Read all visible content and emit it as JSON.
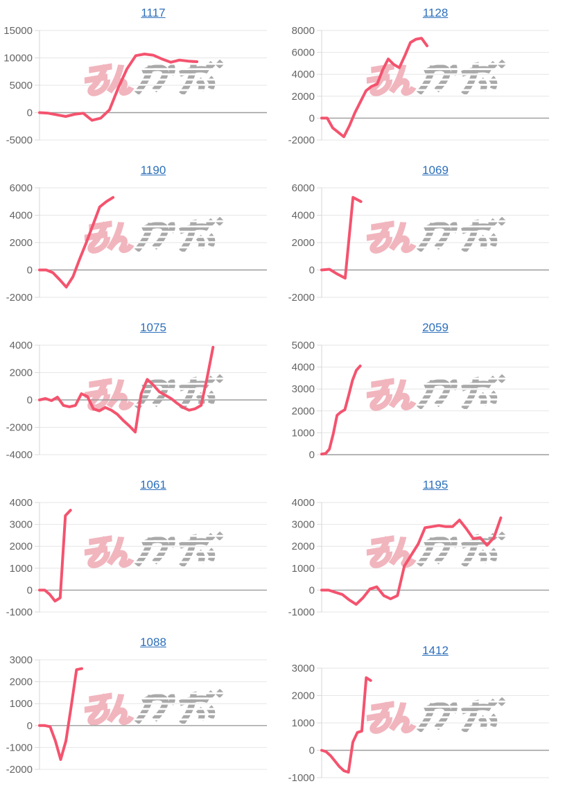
{
  "watermark": {
    "label": "みんかぶ",
    "pink_text": "みん",
    "gray_text": "かぶ"
  },
  "colors": {
    "line": "#f4536e",
    "title_link": "#2c6fbb",
    "axis_label": "#646464",
    "gridline": "#e6e6e6",
    "tick_stub": "#d9d9d9",
    "axis_line": "#d6d6d6",
    "zero_line": "#9b9b9b",
    "watermark_pink": "#f1b5be",
    "watermark_gray": "#a9a9a9",
    "background": "#ffffff"
  },
  "chart_data": [
    {
      "title": "1117",
      "type": "line",
      "legend": "none",
      "grid": true,
      "ylim": [
        -5000,
        15000
      ],
      "yticks": [
        15000,
        10000,
        5000,
        0,
        -5000
      ],
      "x_slots": 27,
      "values": [
        0,
        -100,
        -400,
        -700,
        -300,
        -100,
        -1400,
        -1000,
        500,
        4500,
        8000,
        10400,
        10700,
        10500,
        9800,
        9200,
        9600,
        9400,
        9300
      ]
    },
    {
      "title": "1128",
      "type": "line",
      "legend": "none",
      "grid": true,
      "ylim": [
        -2000,
        8000
      ],
      "yticks": [
        8000,
        6000,
        4000,
        2000,
        0,
        -2000
      ],
      "x_slots": 42,
      "values": [
        0,
        0,
        -900,
        -1300,
        -1700,
        -700,
        500,
        1500,
        2500,
        2900,
        3100,
        4400,
        5400,
        4900,
        4600,
        5700,
        6900,
        7200,
        7300,
        6600
      ]
    },
    {
      "title": "1190",
      "type": "line",
      "legend": "none",
      "grid": true,
      "ylim": [
        -2000,
        6000
      ],
      "yticks": [
        6000,
        4000,
        2000,
        0,
        -2000
      ],
      "x_slots": 35,
      "values": [
        0,
        0,
        -200,
        -700,
        -1250,
        -500,
        800,
        2000,
        3300,
        4600,
        5000,
        5300
      ]
    },
    {
      "title": "1069",
      "type": "line",
      "legend": "none",
      "grid": true,
      "ylim": [
        -2000,
        6000
      ],
      "yticks": [
        6000,
        4000,
        2000,
        0,
        -2000
      ],
      "x_slots": 30,
      "values": [
        0,
        50,
        -300,
        -600,
        5300,
        5000
      ]
    },
    {
      "title": "1075",
      "type": "line",
      "legend": "none",
      "grid": true,
      "ylim": [
        -4000,
        4000
      ],
      "yticks": [
        4000,
        2000,
        0,
        -2000,
        -4000
      ],
      "x_slots": 39,
      "values": [
        0,
        100,
        -50,
        200,
        -400,
        -500,
        -400,
        450,
        250,
        -650,
        -800,
        -550,
        -750,
        -1050,
        -1500,
        -1900,
        -2350,
        450,
        1500,
        1100,
        600,
        350,
        100,
        -250,
        -550,
        -750,
        -650,
        -400,
        1600,
        3850
      ]
    },
    {
      "title": "2059",
      "type": "line",
      "legend": "none",
      "grid": true,
      "ylim": [
        0,
        5000
      ],
      "yticks": [
        5000,
        4000,
        3000,
        2000,
        1000,
        0
      ],
      "x_slots": 60,
      "values": [
        30,
        50,
        250,
        950,
        1800,
        1950,
        2050,
        2700,
        3400,
        3850,
        4050
      ]
    },
    {
      "title": "1061",
      "type": "line",
      "legend": "none",
      "grid": true,
      "ylim": [
        -1000,
        4000
      ],
      "yticks": [
        4000,
        3000,
        2000,
        1000,
        0,
        -1000
      ],
      "x_slots": 45,
      "values": [
        0,
        0,
        -200,
        -500,
        -350,
        3400,
        3650
      ]
    },
    {
      "title": "1195",
      "type": "line",
      "legend": "none",
      "grid": true,
      "ylim": [
        -1000,
        4000
      ],
      "yticks": [
        4000,
        3000,
        2000,
        1000,
        0,
        -1000
      ],
      "x_slots": 34,
      "values": [
        0,
        0,
        -100,
        -200,
        -450,
        -650,
        -350,
        50,
        150,
        -250,
        -400,
        -250,
        1100,
        1600,
        2100,
        2850,
        2900,
        2950,
        2900,
        2900,
        3200,
        2800,
        2350,
        2400,
        2050,
        2400,
        3300
      ]
    },
    {
      "title": "1088",
      "type": "line",
      "legend": "none",
      "grid": true,
      "ylim": [
        -2000,
        3000
      ],
      "yticks": [
        3000,
        2000,
        1000,
        0,
        -1000,
        -2000
      ],
      "x_slots": 44,
      "values": [
        0,
        0,
        -50,
        -700,
        -1550,
        -700,
        900,
        2550,
        2600
      ]
    },
    {
      "title": "1412",
      "type": "line",
      "legend": "none",
      "grid": true,
      "ylim": [
        -1000,
        3000
      ],
      "yticks": [
        3000,
        2000,
        1000,
        0,
        -1000
      ],
      "x_slots": 52,
      "values": [
        0,
        -50,
        -200,
        -400,
        -600,
        -750,
        -800,
        300,
        650,
        700,
        2650,
        2550
      ]
    }
  ]
}
